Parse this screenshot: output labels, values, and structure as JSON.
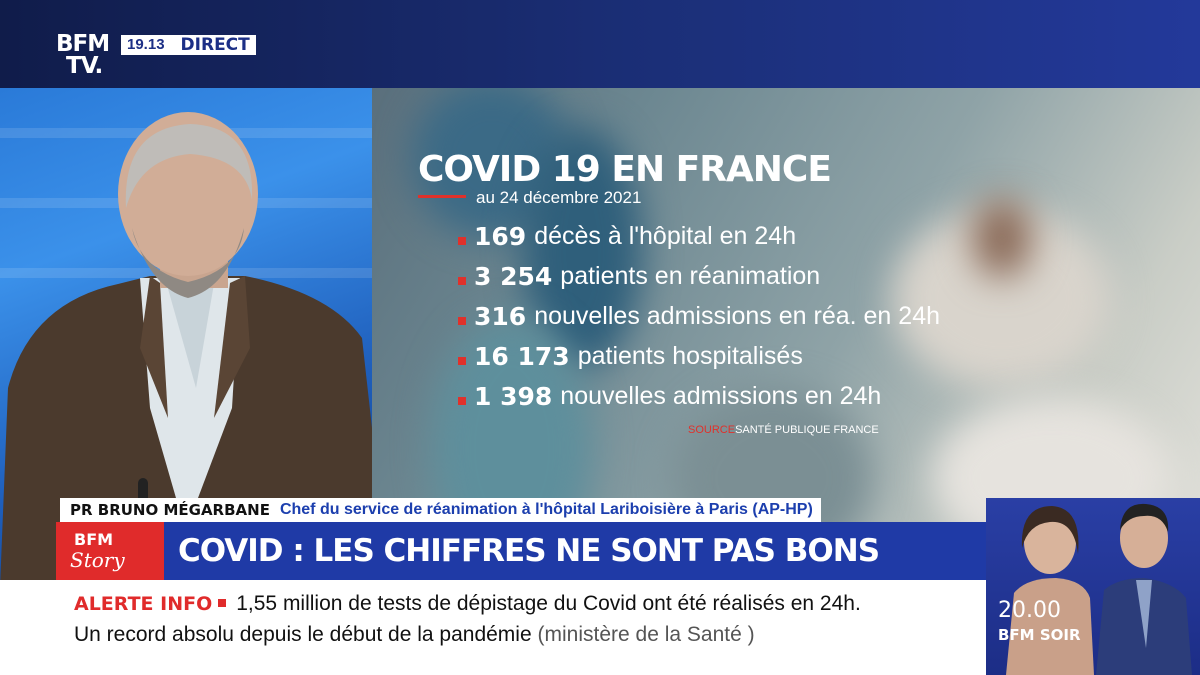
{
  "channel": {
    "logo_line1": "BFM",
    "logo_line2": "TV.",
    "clock": "19.13",
    "live_label": "DIRECT"
  },
  "stats_panel": {
    "title": "COVID 19 EN FRANCE",
    "date": "au 24 décembre 2021",
    "items": [
      {
        "number": "169",
        "text": "décès à l'hôpital en 24h"
      },
      {
        "number": "3 254",
        "text": "patients en réanimation"
      },
      {
        "number": "316",
        "text": "nouvelles admissions en réa. en 24h"
      },
      {
        "number": "16 173",
        "text": "patients hospitalisés"
      },
      {
        "number": "1 398",
        "text": "nouvelles admissions en 24h"
      }
    ],
    "source_label": "SOURCE",
    "source_value": "SANTÉ PUBLIQUE FRANCE"
  },
  "guest": {
    "name": "PR BRUNO MÉGARBANE",
    "role": "Chef du service de réanimation à l'hôpital Lariboisière à Paris (AP-HP)"
  },
  "headline": {
    "badge_top": "BFM",
    "badge_bottom": "Story",
    "text": "COVID : LES CHIFFRES NE SONT PAS BONS"
  },
  "ticker": {
    "alert_label": "ALERTE INFO",
    "line1": "1,55 million de tests de dépistage du Covid ont été réalisés en 24h.",
    "line2": "Un record absolu depuis le début de la pandémie",
    "line2_source": "(ministère de la Santé )"
  },
  "promo": {
    "time": "20.00",
    "show": "BFM SOIR"
  },
  "colors": {
    "brand_blue": "#1f3aa6",
    "alert_red": "#e02b2b"
  }
}
